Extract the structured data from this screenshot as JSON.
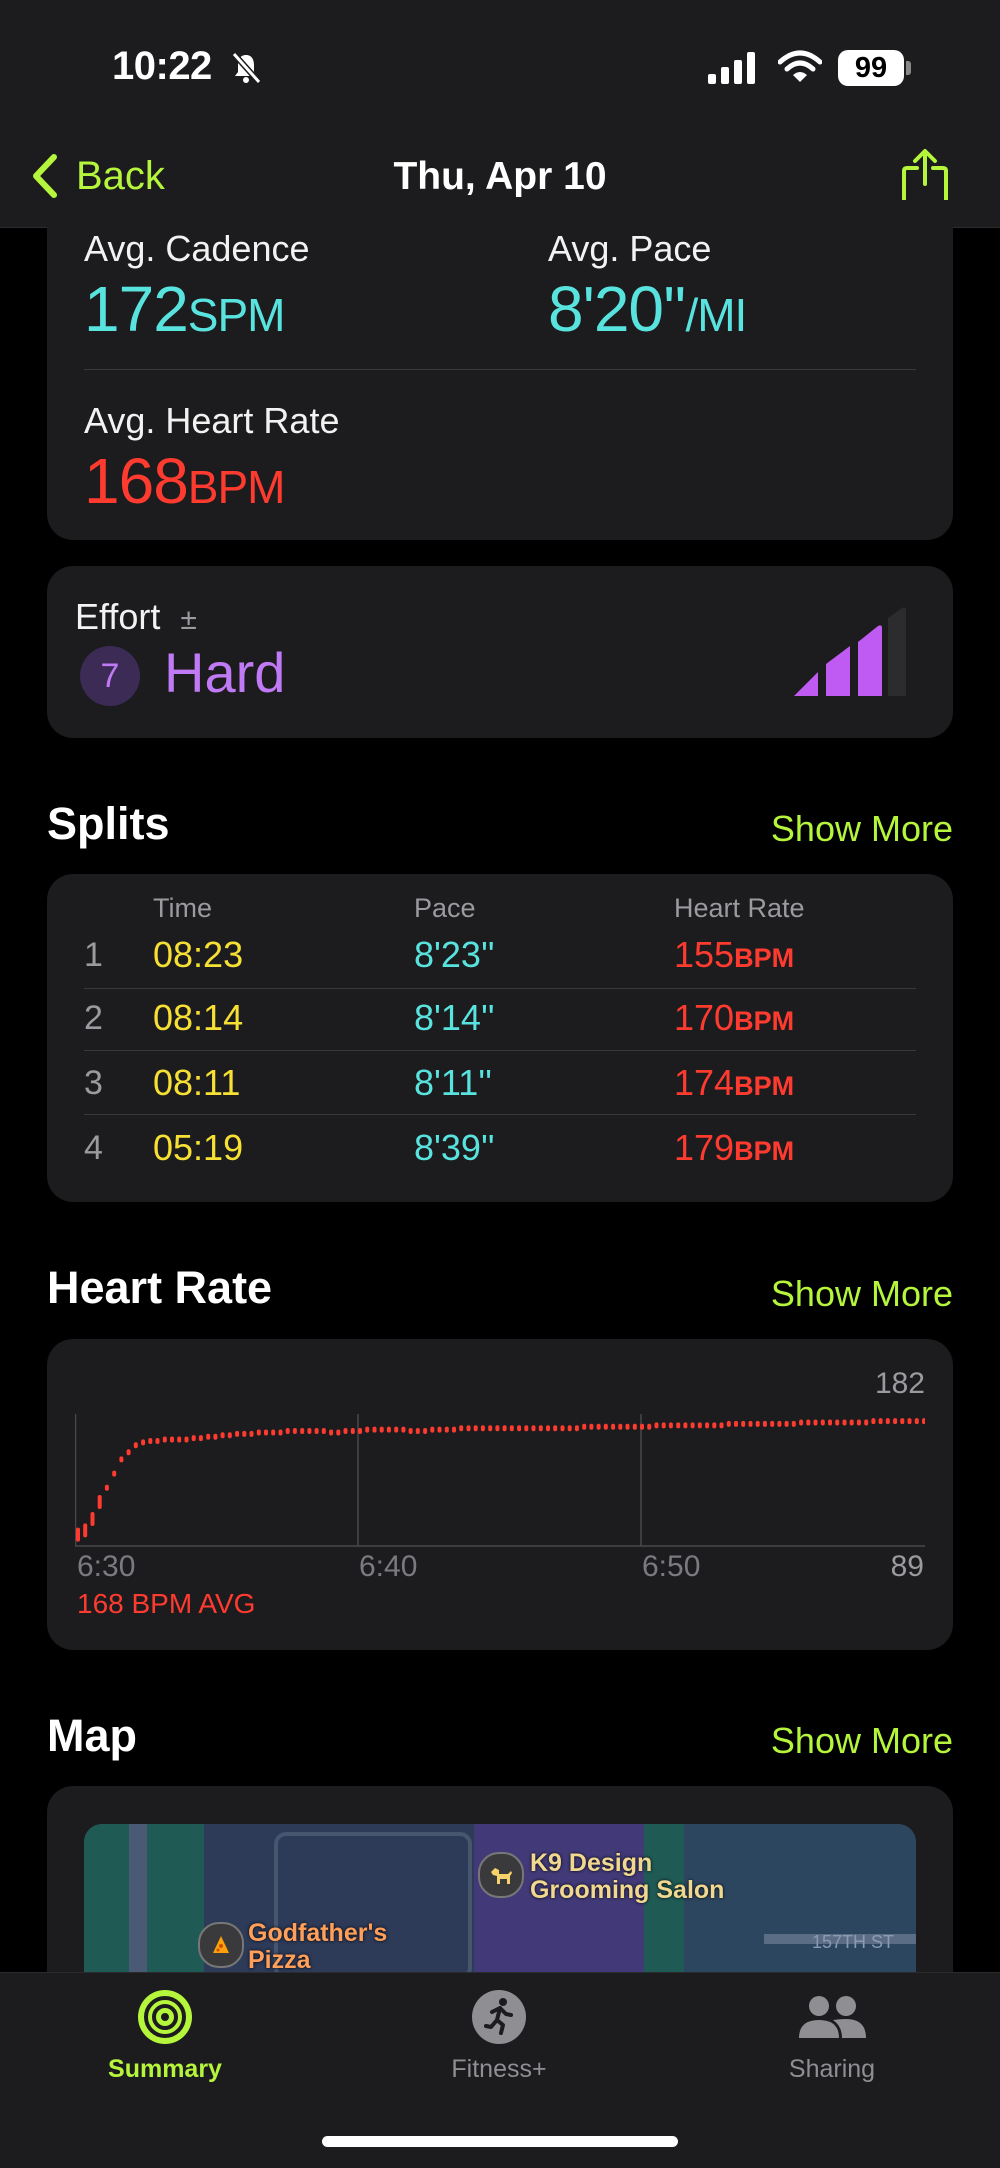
{
  "status_bar": {
    "time": "10:22",
    "battery": "99"
  },
  "nav": {
    "back_label": "Back",
    "title": "Thu, Apr 10"
  },
  "metrics": {
    "cadence_label": "Avg. Cadence",
    "cadence_value": "172",
    "cadence_unit": "SPM",
    "pace_label": "Avg. Pace",
    "pace_value": "8'20''",
    "pace_unit": "/MI",
    "hr_label": "Avg. Heart Rate",
    "hr_value": "168",
    "hr_unit": "BPM"
  },
  "effort": {
    "label": "Effort",
    "plusminus": "±",
    "level": "7",
    "text": "Hard",
    "bars_filled": 3,
    "bars_total": 4
  },
  "splits": {
    "title": "Splits",
    "show_more": "Show More",
    "headers": [
      "Time",
      "Pace",
      "Heart Rate"
    ],
    "unit": "BPM",
    "rows": [
      {
        "n": "1",
        "time": "08:23",
        "pace": "8'23''",
        "hr": "155"
      },
      {
        "n": "2",
        "time": "08:14",
        "pace": "8'14''",
        "hr": "170"
      },
      {
        "n": "3",
        "time": "08:11",
        "pace": "8'11''",
        "hr": "174"
      },
      {
        "n": "4",
        "time": "05:19",
        "pace": "8'39''",
        "hr": "179"
      }
    ]
  },
  "heart_rate": {
    "title": "Heart Rate",
    "show_more": "Show More",
    "max_label": "182",
    "min_label": "89",
    "x_labels": [
      "6:30",
      "6:40",
      "6:50"
    ],
    "avg_label": "168 BPM AVG",
    "color": "#ff3b30"
  },
  "chart_data": {
    "type": "scatter",
    "title": "",
    "xlabel": "",
    "ylabel": "",
    "ylim": [
      89,
      182
    ],
    "x_ticks": [
      "6:30",
      "6:40",
      "6:50"
    ],
    "series": [
      {
        "values": [
          97,
          100,
          108,
          120,
          130,
          140,
          150,
          155,
          160,
          162,
          163,
          163,
          164,
          164,
          164,
          164,
          165,
          165,
          166,
          166,
          167,
          167,
          168,
          168,
          168,
          169,
          169,
          169,
          169,
          170,
          170,
          170,
          170,
          170,
          170,
          169,
          169,
          170,
          170,
          170,
          171,
          171,
          171,
          171,
          171,
          171,
          170,
          170,
          170,
          171,
          171,
          171,
          171,
          172,
          172,
          172,
          172,
          172,
          172,
          172,
          172,
          172,
          172,
          172,
          172,
          172,
          172,
          172,
          172,
          172,
          173,
          173,
          173,
          173,
          173,
          173,
          173,
          173,
          173,
          173,
          174,
          174,
          174,
          174,
          174,
          174,
          174,
          174,
          174,
          174,
          175,
          175,
          175,
          175,
          175,
          175,
          175,
          175,
          175,
          175,
          176,
          176,
          176,
          176,
          176,
          176,
          176,
          176,
          176,
          176,
          177,
          177,
          177,
          177,
          177,
          177,
          177,
          177
        ]
      }
    ]
  },
  "map": {
    "title": "Map",
    "show_more": "Show More",
    "poi_1": "K9 Design",
    "poi_1b": "Grooming Salon",
    "poi_2": "Godfather's",
    "poi_2b": "Pizza",
    "street": "157TH ST"
  },
  "tabbar": {
    "summary": "Summary",
    "fitness": "Fitness+",
    "sharing": "Sharing",
    "active_color": "#b5f53b"
  }
}
